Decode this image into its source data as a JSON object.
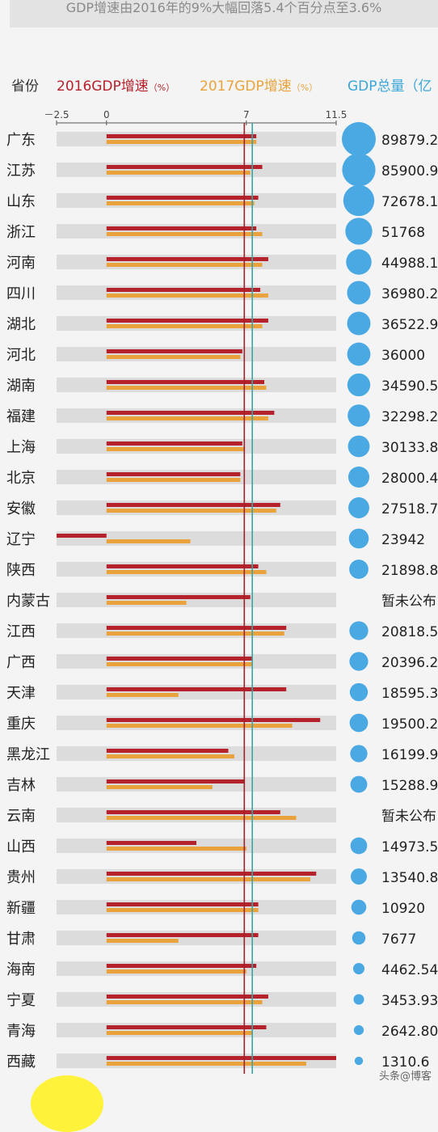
{
  "banner": "GDP增速由2016年的9%大幅回落5.4个百分点至3.6%",
  "header": {
    "province_label": "省份",
    "series2016_label": "2016GDP增速",
    "series2017_label": "2017GDP增速",
    "unit_pct": "（%）",
    "gdp_label": "GDP总量（亿"
  },
  "watermark": "头条@博客",
  "colors": {
    "s2016": "#b5222c",
    "s2017": "#e9a23c",
    "track": "#dcdcdc",
    "bubble": "#4aa8e2",
    "line2016": "#a0202c",
    "line2017": "#3aa6a4"
  },
  "chart_data": {
    "type": "bar",
    "xlim": [
      -2.5,
      11.5
    ],
    "tick_labels": [
      "－2.5",
      "0",
      "7",
      "11.5"
    ],
    "ticks": [
      -2.5,
      0,
      7,
      11.5
    ],
    "reference_lines": {
      "s2016": 6.9,
      "s2017": 7.3
    },
    "categories": [
      "广东",
      "江苏",
      "山东",
      "浙江",
      "河南",
      "四川",
      "湖北",
      "河北",
      "湖南",
      "福建",
      "上海",
      "北京",
      "安徽",
      "辽宁",
      "陕西",
      "内蒙古",
      "江西",
      "广西",
      "天津",
      "重庆",
      "黑龙江",
      "吉林",
      "云南",
      "山西",
      "贵州",
      "新疆",
      "甘肃",
      "海南",
      "宁夏",
      "青海",
      "西藏"
    ],
    "series": [
      {
        "name": "2016GDP增速",
        "values": [
          7.5,
          7.8,
          7.6,
          7.5,
          8.1,
          7.7,
          8.1,
          6.8,
          7.9,
          8.4,
          6.8,
          6.7,
          8.7,
          -2.5,
          7.6,
          7.2,
          9.0,
          7.3,
          9.0,
          10.7,
          6.1,
          6.9,
          8.7,
          4.5,
          10.5,
          7.6,
          7.6,
          7.5,
          8.1,
          8.0,
          11.5
        ]
      },
      {
        "name": "2017GDP增速",
        "values": [
          7.5,
          7.2,
          7.4,
          7.8,
          7.8,
          8.1,
          7.8,
          6.7,
          8.0,
          8.1,
          6.9,
          6.7,
          8.5,
          4.2,
          8.0,
          4.0,
          8.9,
          7.3,
          3.6,
          9.3,
          6.4,
          5.3,
          9.5,
          7.0,
          10.2,
          7.6,
          3.6,
          7.0,
          7.8,
          7.3,
          10.0
        ]
      }
    ],
    "gdp_values": [
      "89879.2",
      "85900.9",
      "72678.1",
      "51768",
      "44988.1",
      "36980.2",
      "36522.9",
      "36000",
      "34590.5",
      "32298.2",
      "30133.8",
      "28000.4",
      "27518.7",
      "23942",
      "21898.8",
      "暂未公布",
      "20818.5",
      "20396.2",
      "18595.3",
      "19500.2",
      "16199.9",
      "15288.9",
      "暂未公布",
      "14973.5",
      "13540.8",
      "10920",
      "7677",
      "4462.54",
      "3453.93",
      "2642.80",
      "1310.6"
    ],
    "gdp_numeric": [
      89879.2,
      85900.9,
      72678.1,
      51768,
      44988.1,
      36980.2,
      36522.9,
      36000,
      34590.5,
      32298.2,
      30133.8,
      28000.4,
      27518.7,
      23942,
      21898.8,
      null,
      20818.5,
      20396.2,
      18595.3,
      19500.2,
      16199.9,
      15288.9,
      null,
      14973.5,
      13540.8,
      10920,
      7677,
      4462.54,
      3453.93,
      2642.8,
      1310.6
    ]
  }
}
